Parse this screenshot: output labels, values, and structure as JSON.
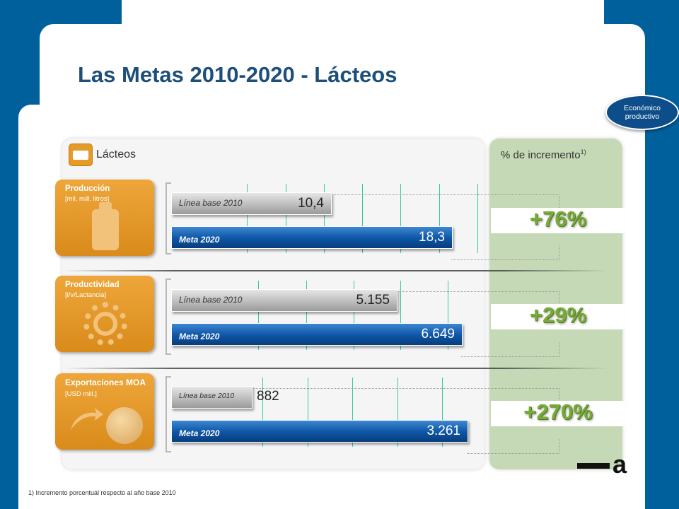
{
  "title": "Las Metas 2010-2020 - Lácteos",
  "badge": {
    "line1": "Económico",
    "line2": "productivo"
  },
  "panel_left_header": "Lácteos",
  "panel_right_header": "% de incremento",
  "panel_right_header_sup": "1)",
  "footnote": "1) Incremento porcentual respecto al año base 2010",
  "logo_text": "a",
  "colors": {
    "accent_orange": "#e49b2a",
    "bar_blue": "#0d55a5",
    "pct_green": "#7aaa3a",
    "background_blue": "#00609c"
  },
  "chart_data": [
    {
      "type": "bar",
      "category_title": "Producción",
      "category_unit": "[mil. mill. litros]",
      "categories": [
        "Línea base 2010",
        "Meta 2020"
      ],
      "values": [
        10.4,
        18.3
      ],
      "value_labels": [
        "10,4",
        "18,3"
      ],
      "increment": "+76%"
    },
    {
      "type": "bar",
      "category_title": "Productividad",
      "category_unit": "[l/v/Lactancia]",
      "categories": [
        "Línea base 2010",
        "Meta 2020"
      ],
      "values": [
        5155,
        6649
      ],
      "value_labels": [
        "5.155",
        "6.649"
      ],
      "increment": "+29%"
    },
    {
      "type": "bar",
      "category_title": "Exportaciones MOA",
      "category_unit": "[USD mill.]",
      "categories": [
        "Línea base 2010",
        "Meta 2020"
      ],
      "values": [
        882,
        3261
      ],
      "value_labels": [
        "882",
        "3.261"
      ],
      "increment": "+270%"
    }
  ]
}
